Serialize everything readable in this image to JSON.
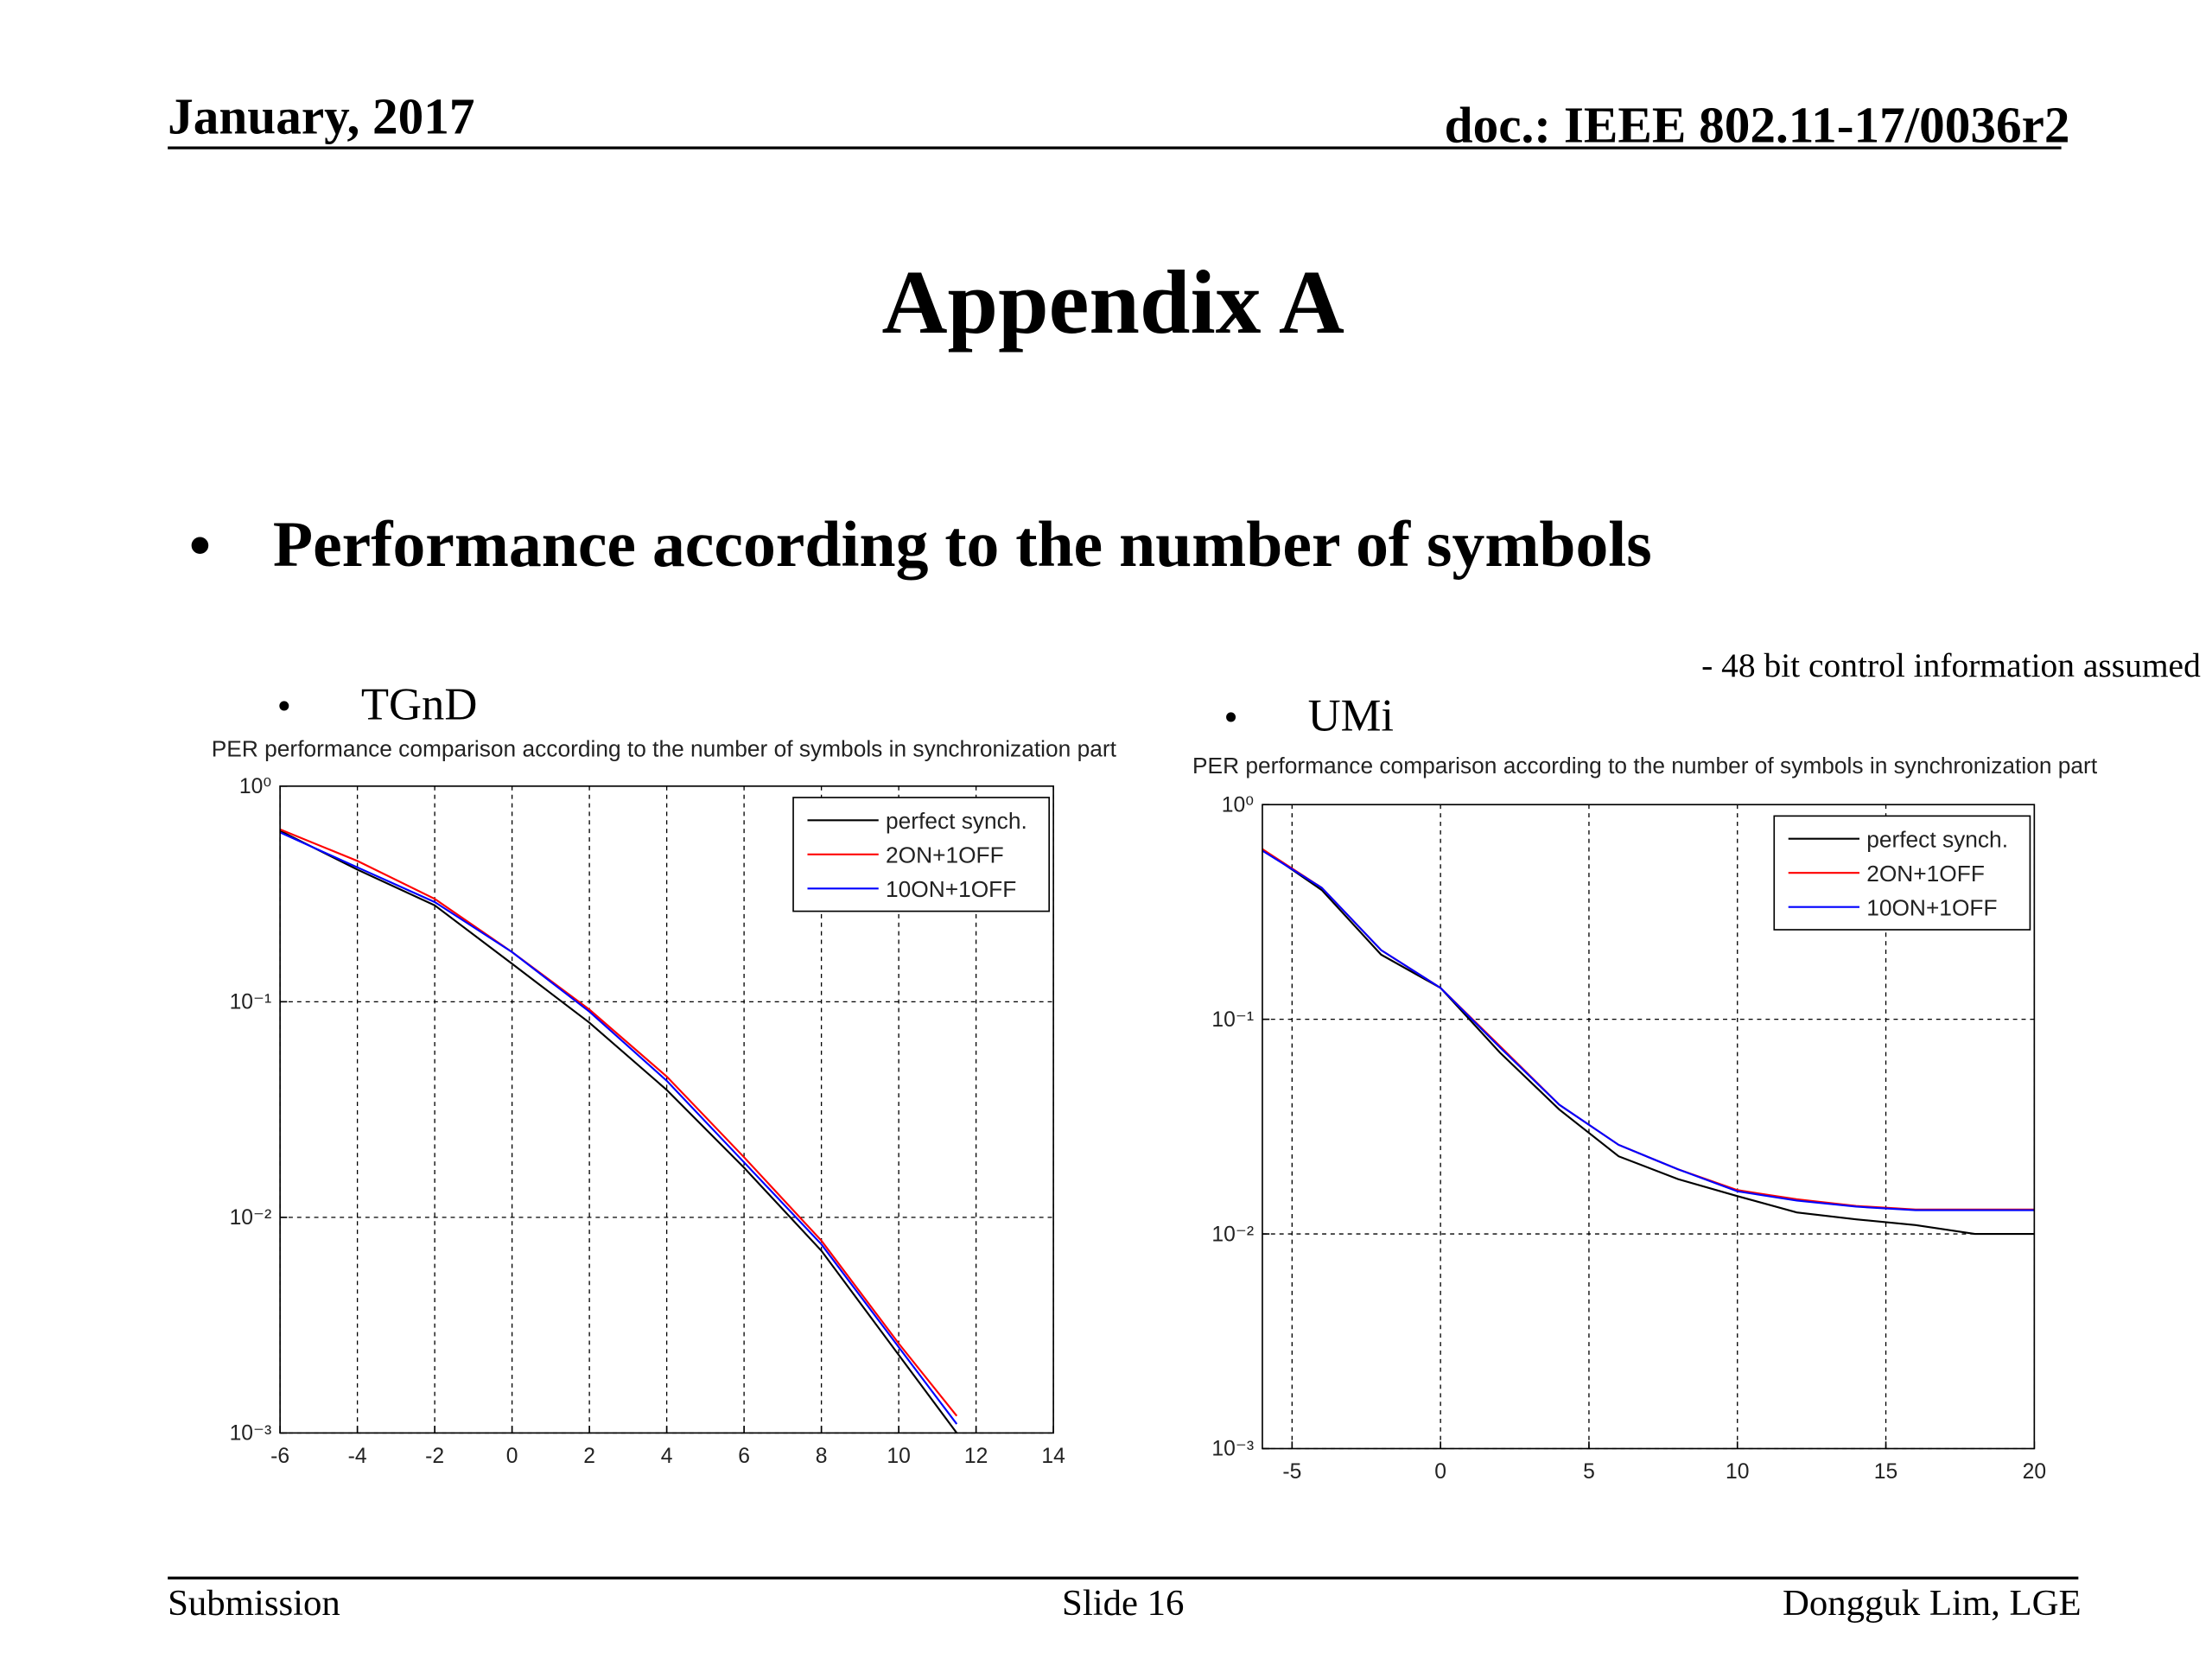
{
  "header": {
    "date": "January, 2017",
    "doc": "doc.: IEEE 802.11-17/0036r2"
  },
  "title": "Appendix A",
  "bullet": "Performance according to the number of symbols",
  "note": "- 48 bit control information assumed",
  "footer": {
    "left": "Submission",
    "center": "Slide 16",
    "right": "Dongguk Lim, LGE"
  },
  "chart_data": [
    {
      "type": "line",
      "heading": "TGnD",
      "title": "PER performance comparison according to the number of symbols in synchronization part",
      "x": [
        -6,
        -4,
        -2,
        0,
        2,
        4,
        6,
        8,
        10,
        11.5
      ],
      "series": [
        {
          "name": "perfect synch.",
          "color": "#000000",
          "values": [
            0.62,
            0.41,
            0.28,
            0.15,
            0.08,
            0.039,
            0.017,
            0.007,
            0.0023,
            0.001
          ]
        },
        {
          "name": "2ON+1OFF",
          "color": "#ff0000",
          "values": [
            0.63,
            0.45,
            0.3,
            0.17,
            0.092,
            0.045,
            0.019,
            0.0078,
            0.0026,
            0.0012
          ]
        },
        {
          "name": "10ON+1OFF",
          "color": "#0000ff",
          "values": [
            0.61,
            0.42,
            0.29,
            0.17,
            0.09,
            0.043,
            0.018,
            0.0075,
            0.0025,
            0.0011
          ]
        }
      ],
      "xlim": [
        -6,
        14
      ],
      "xticks": [
        -6,
        -4,
        -2,
        0,
        2,
        4,
        6,
        8,
        10,
        12,
        14
      ],
      "ylim": [
        0.001,
        1
      ],
      "log_y": true,
      "yticks": [
        {
          "value": 0.001,
          "label": "10⁻³"
        },
        {
          "value": 0.01,
          "label": "10⁻²"
        },
        {
          "value": 0.1,
          "label": "10⁻¹"
        },
        {
          "value": 1,
          "label": "10⁰"
        }
      ],
      "grid": true,
      "legend": "upper right"
    },
    {
      "type": "line",
      "heading": "UMi",
      "title": "PER performance comparison according to the number of symbols in synchronization part",
      "x": [
        -6,
        -4,
        -2,
        0,
        2,
        4,
        6,
        8,
        10,
        12,
        14,
        16,
        18,
        20
      ],
      "series": [
        {
          "name": "perfect synch.",
          "color": "#000000",
          "values": [
            0.62,
            0.4,
            0.2,
            0.14,
            0.07,
            0.038,
            0.023,
            0.018,
            0.015,
            0.0126,
            0.0117,
            0.011,
            0.01,
            0.01
          ]
        },
        {
          "name": "2ON+1OFF",
          "color": "#ff0000",
          "values": [
            0.62,
            0.41,
            0.21,
            0.14,
            0.075,
            0.04,
            0.026,
            0.02,
            0.016,
            0.0145,
            0.0135,
            0.013,
            0.013,
            0.013
          ]
        },
        {
          "name": "10ON+1OFF",
          "color": "#0000ff",
          "values": [
            0.61,
            0.41,
            0.21,
            0.14,
            0.074,
            0.04,
            0.026,
            0.02,
            0.0158,
            0.0143,
            0.0134,
            0.0129,
            0.0129,
            0.0129
          ]
        }
      ],
      "xlim": [
        -6,
        20
      ],
      "xticks": [
        -5,
        0,
        5,
        10,
        15,
        20
      ],
      "ylim": [
        0.001,
        1
      ],
      "log_y": true,
      "yticks": [
        {
          "value": 0.001,
          "label": "10⁻³"
        },
        {
          "value": 0.01,
          "label": "10⁻²"
        },
        {
          "value": 0.1,
          "label": "10⁻¹"
        },
        {
          "value": 1,
          "label": "10⁰"
        }
      ],
      "grid": true,
      "legend": "upper right"
    }
  ]
}
